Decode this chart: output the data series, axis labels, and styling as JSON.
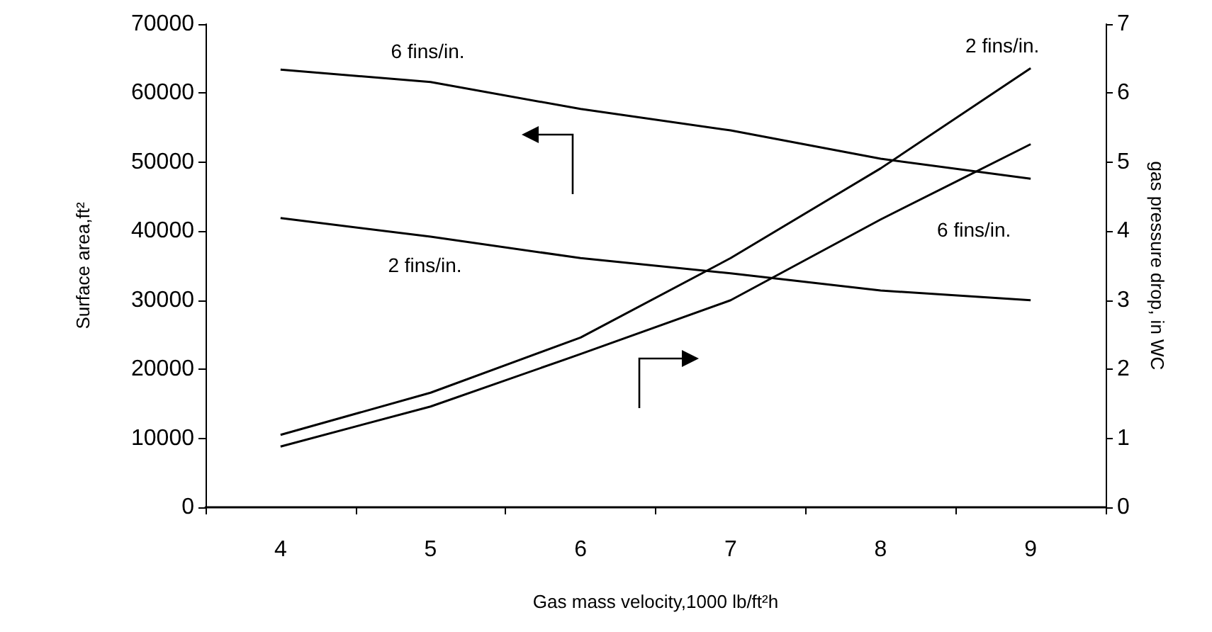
{
  "chart_data": {
    "type": "line",
    "xlabel": "Gas mass velocity,1000 lb/ft²h",
    "ylabel": "Surface area,ft²",
    "y2label": "gas pressure drop, in WC",
    "categories": [
      "4",
      "5",
      "6",
      "7",
      "8",
      "9"
    ],
    "series": [
      {
        "name": "6 fins/in.",
        "color": "#000000",
        "values": [
          63400,
          61600,
          57700,
          54600,
          50500,
          47600
        ]
      },
      {
        "name": "2 fins/in.",
        "color": "#000000",
        "values": [
          41900,
          39200,
          36100,
          33900,
          31400,
          30000
        ]
      },
      {
        "name": "2 fins/in.",
        "color": "#000000",
        "axis": "y2",
        "values": [
          1.05,
          1.66,
          2.46,
          3.61,
          4.91,
          6.36
        ]
      },
      {
        "name": "6 fins/in.",
        "color": "#000000",
        "axis": "y2",
        "values": [
          0.88,
          1.46,
          2.22,
          3.0,
          4.17,
          5.26
        ]
      }
    ],
    "ylim": [
      0,
      70000
    ],
    "yticks": [
      0,
      10000,
      20000,
      30000,
      40000,
      50000,
      60000,
      70000
    ],
    "y2lim": [
      0,
      7
    ],
    "y2ticks": [
      0,
      1,
      2,
      3,
      4,
      5,
      6,
      7
    ],
    "grid": false,
    "marker": "none",
    "line_style": "solid"
  }
}
